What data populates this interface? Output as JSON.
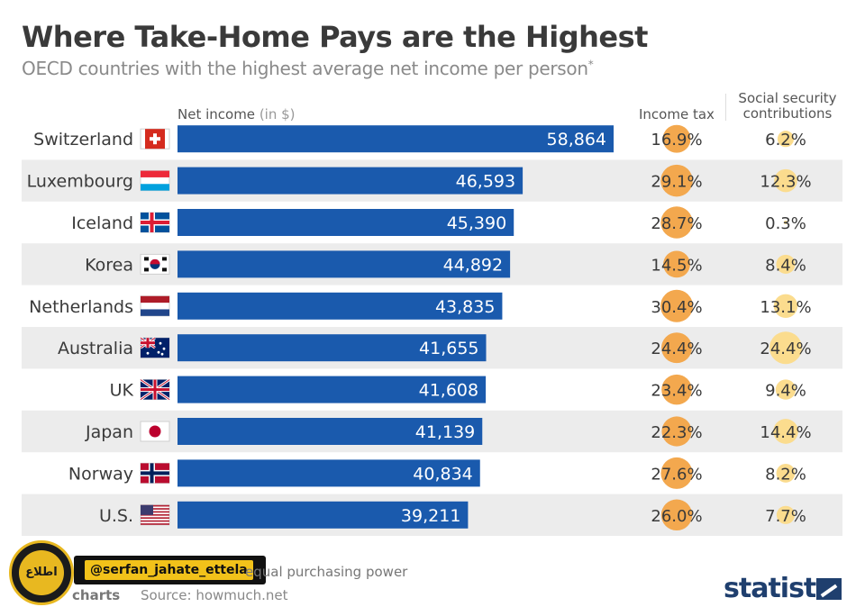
{
  "header": {
    "title": "Where Take-Home Pays are the Highest",
    "subtitle": "OECD countries with the highest average net income per person",
    "subtitle_mark": "*"
  },
  "columns": {
    "net_income_label": "Net income",
    "net_income_unit": "(in $)",
    "income_tax": "Income tax",
    "social_security_line1": "Social security",
    "social_security_line2": "contributions"
  },
  "chart_data": {
    "type": "bar",
    "orientation": "horizontal",
    "categories": [
      "Switzerland",
      "Luxembourg",
      "Iceland",
      "Korea",
      "Netherlands",
      "Australia",
      "UK",
      "Japan",
      "Norway",
      "U.S."
    ],
    "values": [
      58864,
      46593,
      45390,
      44892,
      43835,
      41655,
      41608,
      41139,
      40834,
      39211
    ],
    "value_labels": [
      "58,864",
      "46,593",
      "45,390",
      "44,892",
      "43,835",
      "41,655",
      "41,608",
      "41,139",
      "40,834",
      "39,211"
    ],
    "income_tax": [
      16.9,
      29.1,
      28.7,
      14.5,
      30.4,
      24.4,
      23.4,
      22.3,
      27.6,
      26.0
    ],
    "income_tax_labels": [
      "16.9%",
      "29.1%",
      "28.7%",
      "14.5%",
      "30.4%",
      "24.4%",
      "23.4%",
      "22.3%",
      "27.6%",
      "26.0%"
    ],
    "social_security": [
      6.2,
      12.3,
      0.3,
      8.4,
      13.1,
      24.4,
      9.4,
      14.4,
      8.2,
      7.7
    ],
    "social_security_labels": [
      "6.2%",
      "12.3%",
      "0.3%",
      "8.4%",
      "13.1%",
      "24.4%",
      "9.4%",
      "14.4%",
      "8.2%",
      "7.7%"
    ],
    "flags": [
      "switzerland-flag",
      "luxembourg-flag",
      "iceland-flag",
      "korea-flag",
      "netherlands-flag",
      "australia-flag",
      "uk-flag",
      "japan-flag",
      "norway-flag",
      "us-flag"
    ],
    "colors": {
      "bar": "#1a5aad",
      "tax_bubble": "#f3a84e",
      "ss_bubble": "#fbdc8e",
      "row_alt": "#ececec"
    },
    "grid": false
  },
  "footer": {
    "note": "equal purchasing power",
    "credit": "charts",
    "source": "Source: howmuch.net",
    "brand": "statista"
  },
  "watermark": {
    "handle": "@serfan_jahate_ettela",
    "seal_text": "اطلاع"
  }
}
